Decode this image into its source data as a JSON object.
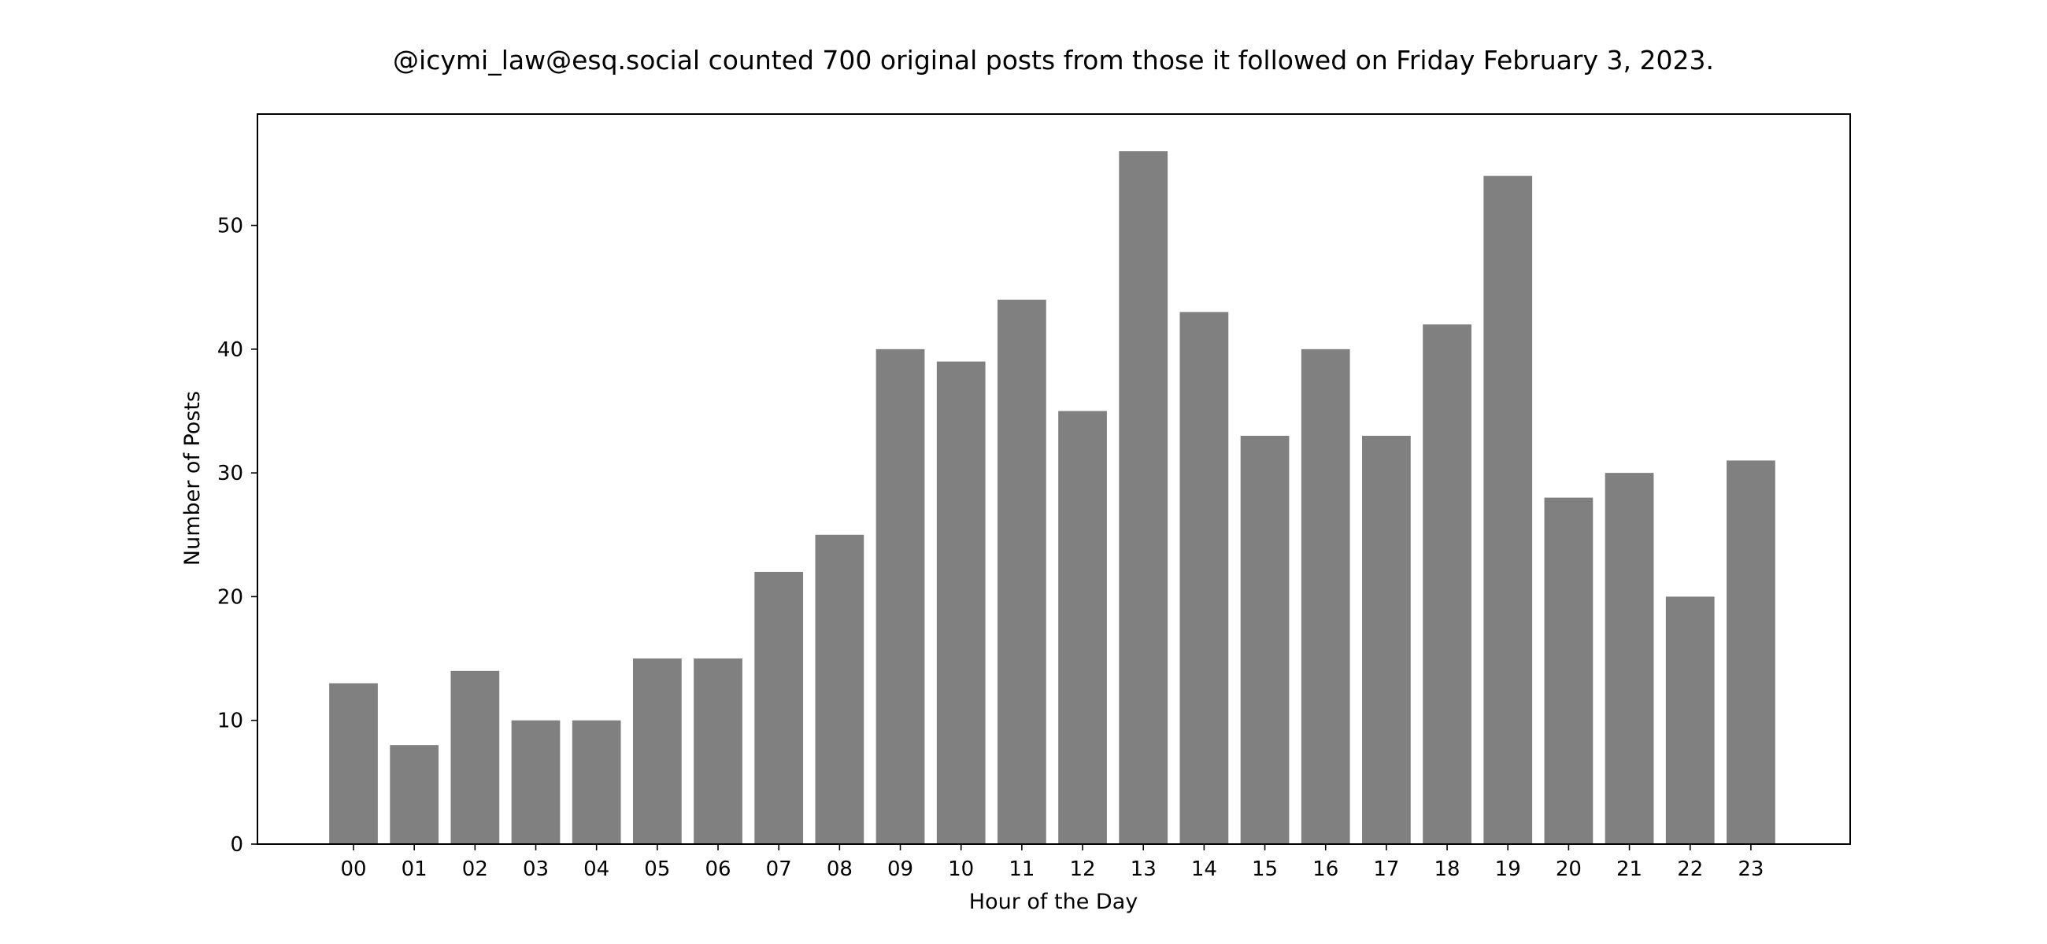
{
  "chart_data": {
    "type": "bar",
    "title": "@icymi_law@esq.social counted 700 original posts from those it followed on Friday February 3, 2023.",
    "xlabel": "Hour of the Day",
    "ylabel": "Number of Posts",
    "categories": [
      "00",
      "01",
      "02",
      "03",
      "04",
      "05",
      "06",
      "07",
      "08",
      "09",
      "10",
      "11",
      "12",
      "13",
      "14",
      "15",
      "16",
      "17",
      "18",
      "19",
      "20",
      "21",
      "22",
      "23"
    ],
    "values": [
      13,
      8,
      14,
      10,
      10,
      15,
      15,
      22,
      25,
      40,
      39,
      44,
      35,
      56,
      43,
      33,
      40,
      33,
      42,
      54,
      28,
      30,
      20,
      31
    ],
    "ylim": [
      0,
      59
    ],
    "yticks": [
      0,
      10,
      20,
      30,
      40,
      50
    ],
    "grid": false,
    "legend": "none",
    "bar_color": "#808080",
    "axis_color": "#000000"
  }
}
